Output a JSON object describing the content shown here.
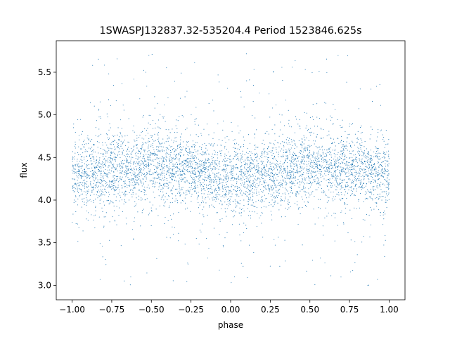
{
  "chart_data": {
    "type": "scatter",
    "title": "1SWASPJ132837.32-535204.4 Period 1523846.625s",
    "xlabel": "phase",
    "ylabel": "flux",
    "xlim": [
      -1.1,
      1.1
    ],
    "ylim": [
      2.83,
      5.87
    ],
    "x_ticks": [
      -1.0,
      -0.75,
      -0.5,
      -0.25,
      0.0,
      0.25,
      0.5,
      0.75,
      1.0
    ],
    "x_tick_labels": [
      "−1.00",
      "−0.75",
      "−0.50",
      "−0.25",
      "0.00",
      "0.25",
      "0.50",
      "0.75",
      "1.00"
    ],
    "y_ticks": [
      3.0,
      3.5,
      4.0,
      4.5,
      5.0,
      5.5
    ],
    "y_tick_labels": [
      "3.0",
      "3.5",
      "4.0",
      "4.5",
      "5.0",
      "5.5"
    ],
    "grid": false,
    "legend": "none",
    "series_color": "#1f77b4",
    "point_count": 5000,
    "phase_range": [
      -1.0,
      1.0
    ],
    "flux_core_range": [
      3.7,
      4.9
    ],
    "flux_full_range": [
      2.98,
      5.72
    ],
    "median_flux": 4.35,
    "profile": [
      {
        "phase": -1.0,
        "median_flux": 4.3
      },
      {
        "phase": -0.75,
        "median_flux": 4.35
      },
      {
        "phase": -0.5,
        "median_flux": 4.42
      },
      {
        "phase": -0.25,
        "median_flux": 4.35
      },
      {
        "phase": 0.0,
        "median_flux": 4.25
      },
      {
        "phase": 0.25,
        "median_flux": 4.3
      },
      {
        "phase": 0.5,
        "median_flux": 4.42
      },
      {
        "phase": 0.75,
        "median_flux": 4.38
      },
      {
        "phase": 1.0,
        "median_flux": 4.3
      }
    ]
  }
}
